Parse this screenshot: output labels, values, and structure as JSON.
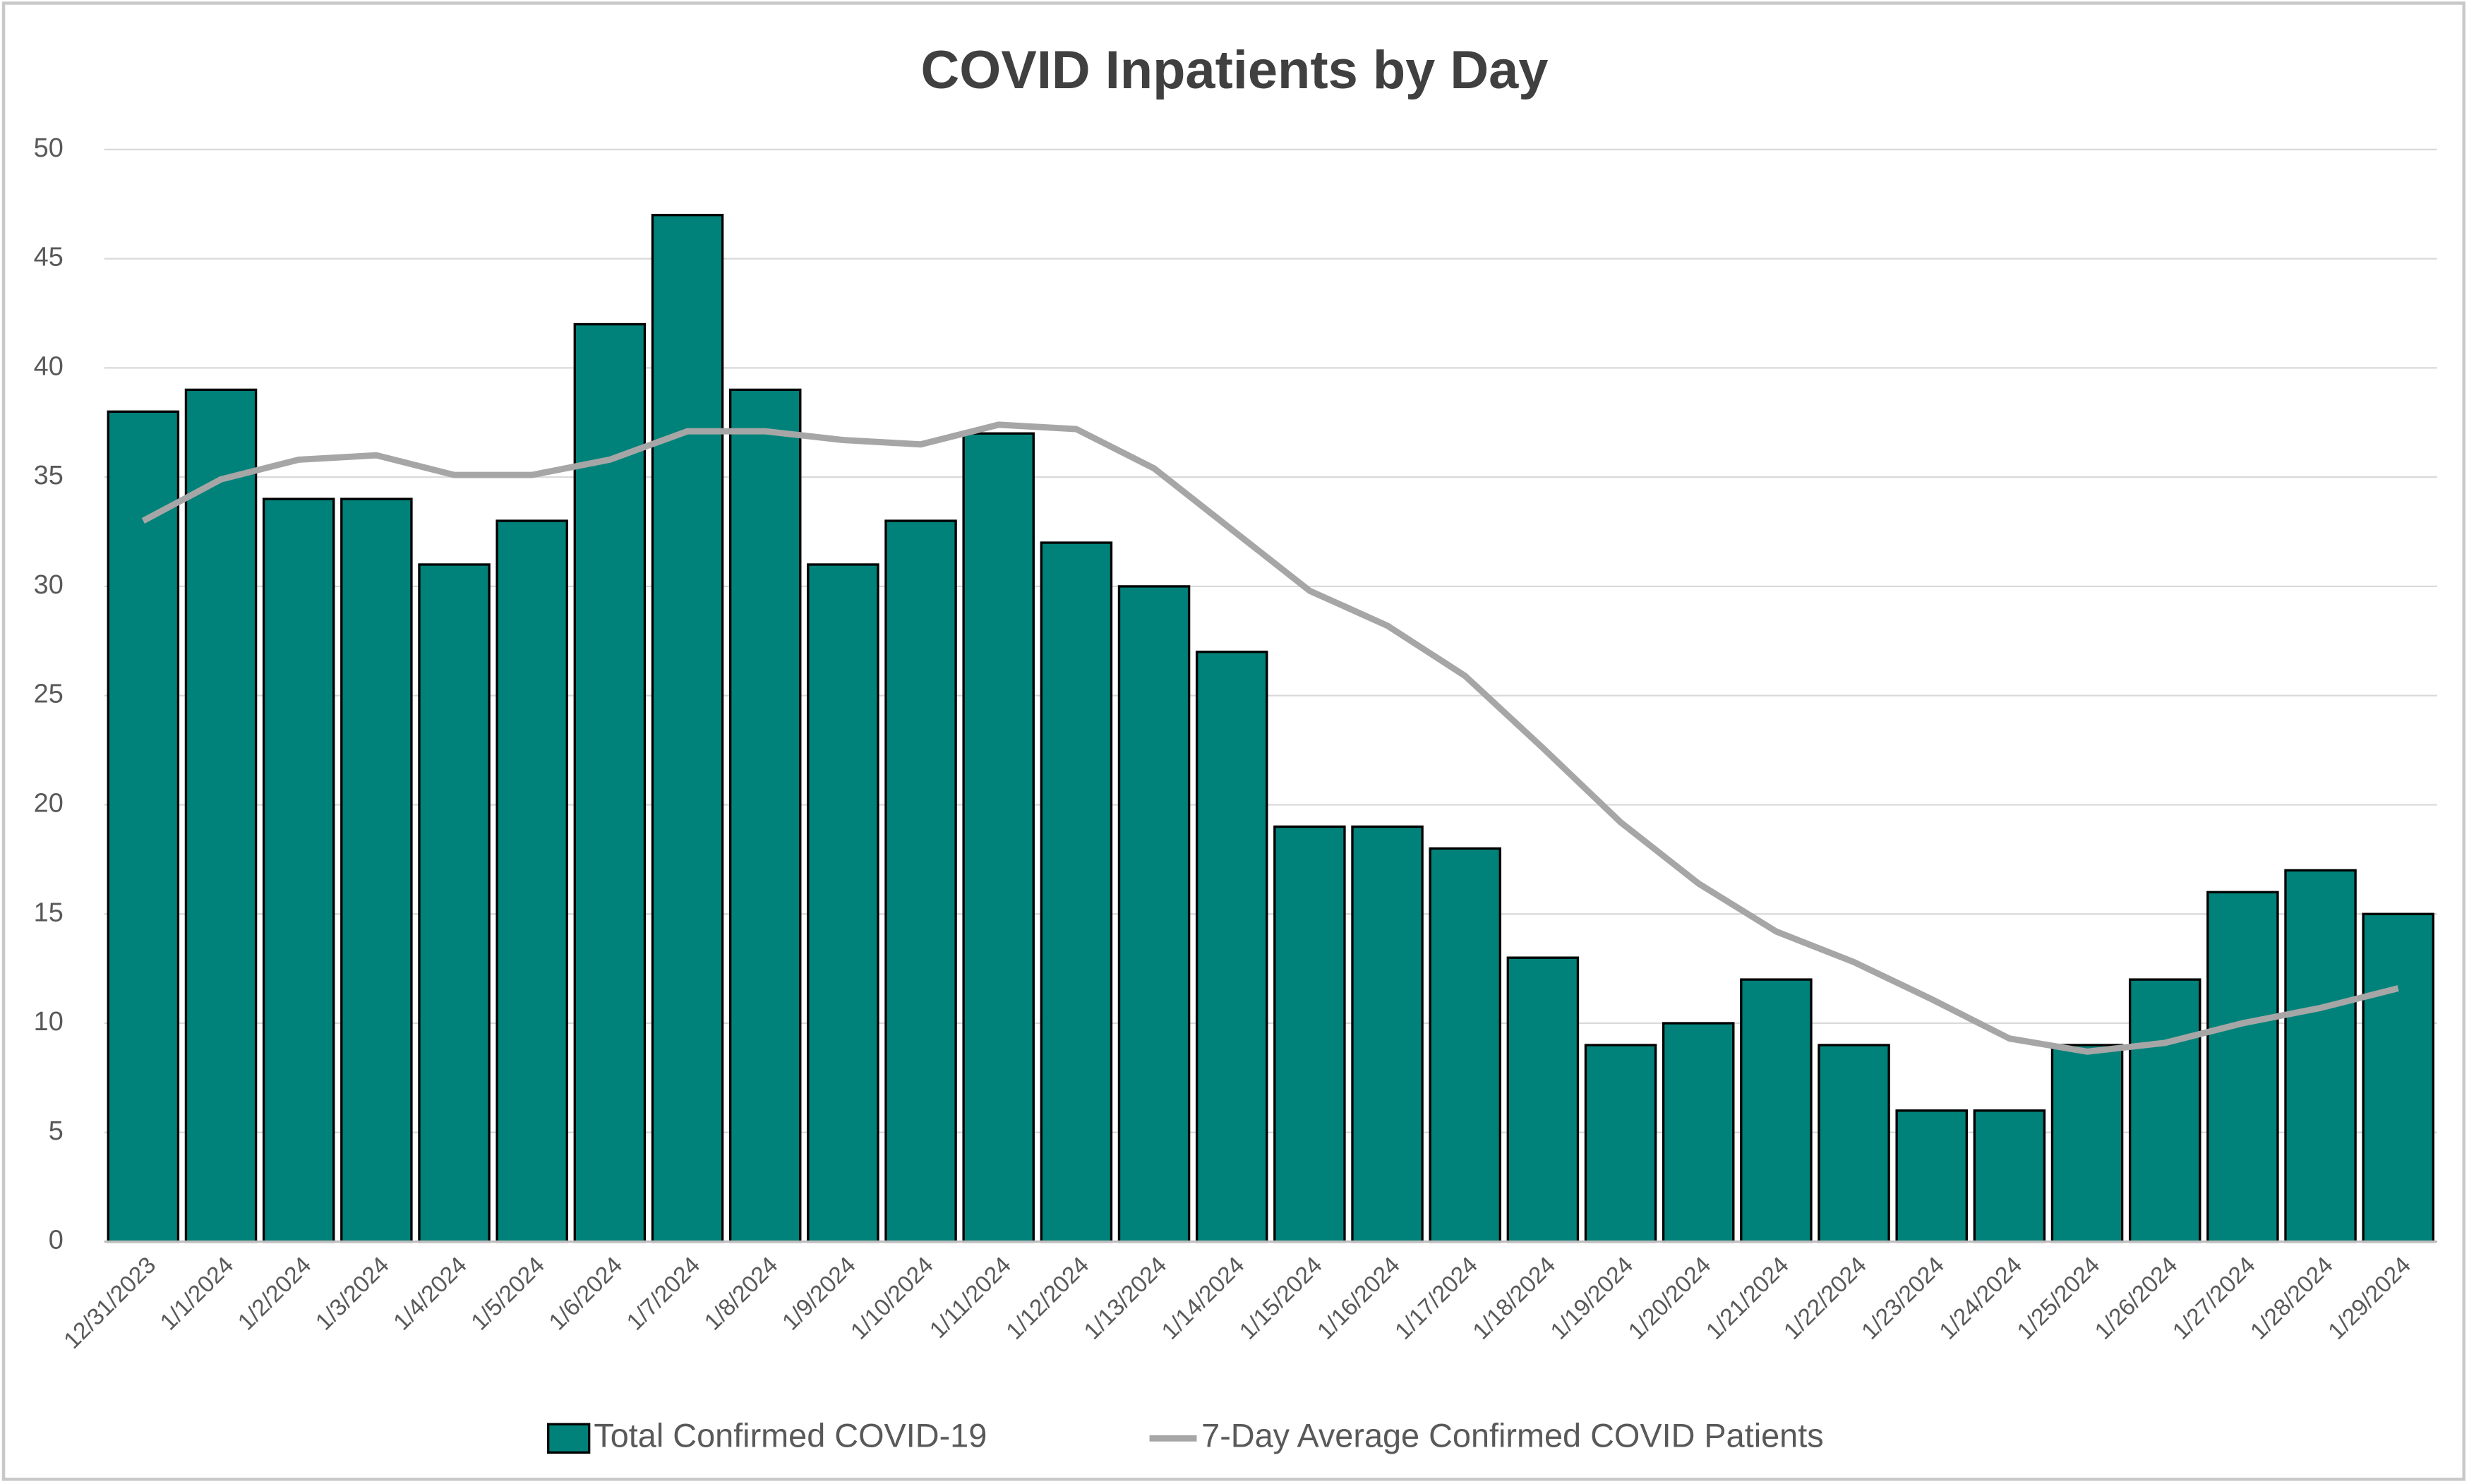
{
  "chart_data": {
    "type": "bar",
    "title": "COVID Inpatients by Day",
    "categories": [
      "12/31/2023",
      "1/1/2024",
      "1/2/2024",
      "1/3/2024",
      "1/4/2024",
      "1/5/2024",
      "1/6/2024",
      "1/7/2024",
      "1/8/2024",
      "1/9/2024",
      "1/10/2024",
      "1/11/2024",
      "1/12/2024",
      "1/13/2024",
      "1/14/2024",
      "1/15/2024",
      "1/16/2024",
      "1/17/2024",
      "1/18/2024",
      "1/19/2024",
      "1/20/2024",
      "1/21/2024",
      "1/22/2024",
      "1/23/2024",
      "1/24/2024",
      "1/25/2024",
      "1/26/2024",
      "1/27/2024",
      "1/28/2024",
      "1/29/2024"
    ],
    "series": [
      {
        "name": "Total Confirmed COVID-19",
        "type": "bar",
        "color": "#00827a",
        "values": [
          38,
          39,
          34,
          34,
          31,
          33,
          42,
          47,
          39,
          31,
          33,
          37,
          32,
          30,
          27,
          19,
          19,
          18,
          13,
          9,
          10,
          12,
          9,
          6,
          6,
          9,
          12,
          16,
          17,
          15
        ]
      },
      {
        "name": "7-Day Average Confirmed COVID Patients",
        "type": "line",
        "color": "#a6a6a6",
        "values": [
          33.0,
          34.9,
          35.8,
          36.0,
          35.1,
          35.1,
          35.8,
          37.1,
          37.1,
          36.7,
          36.5,
          37.4,
          37.2,
          35.4,
          32.6,
          29.8,
          28.2,
          25.9,
          22.6,
          19.2,
          16.4,
          14.2,
          12.8,
          11.1,
          9.3,
          8.7,
          9.1,
          10.0,
          10.7,
          11.6
        ]
      }
    ],
    "ylim": [
      0,
      50
    ],
    "yticks": [
      0,
      5,
      10,
      15,
      20,
      25,
      30,
      35,
      40,
      45,
      50
    ],
    "grid": true,
    "legend": "bottom"
  }
}
